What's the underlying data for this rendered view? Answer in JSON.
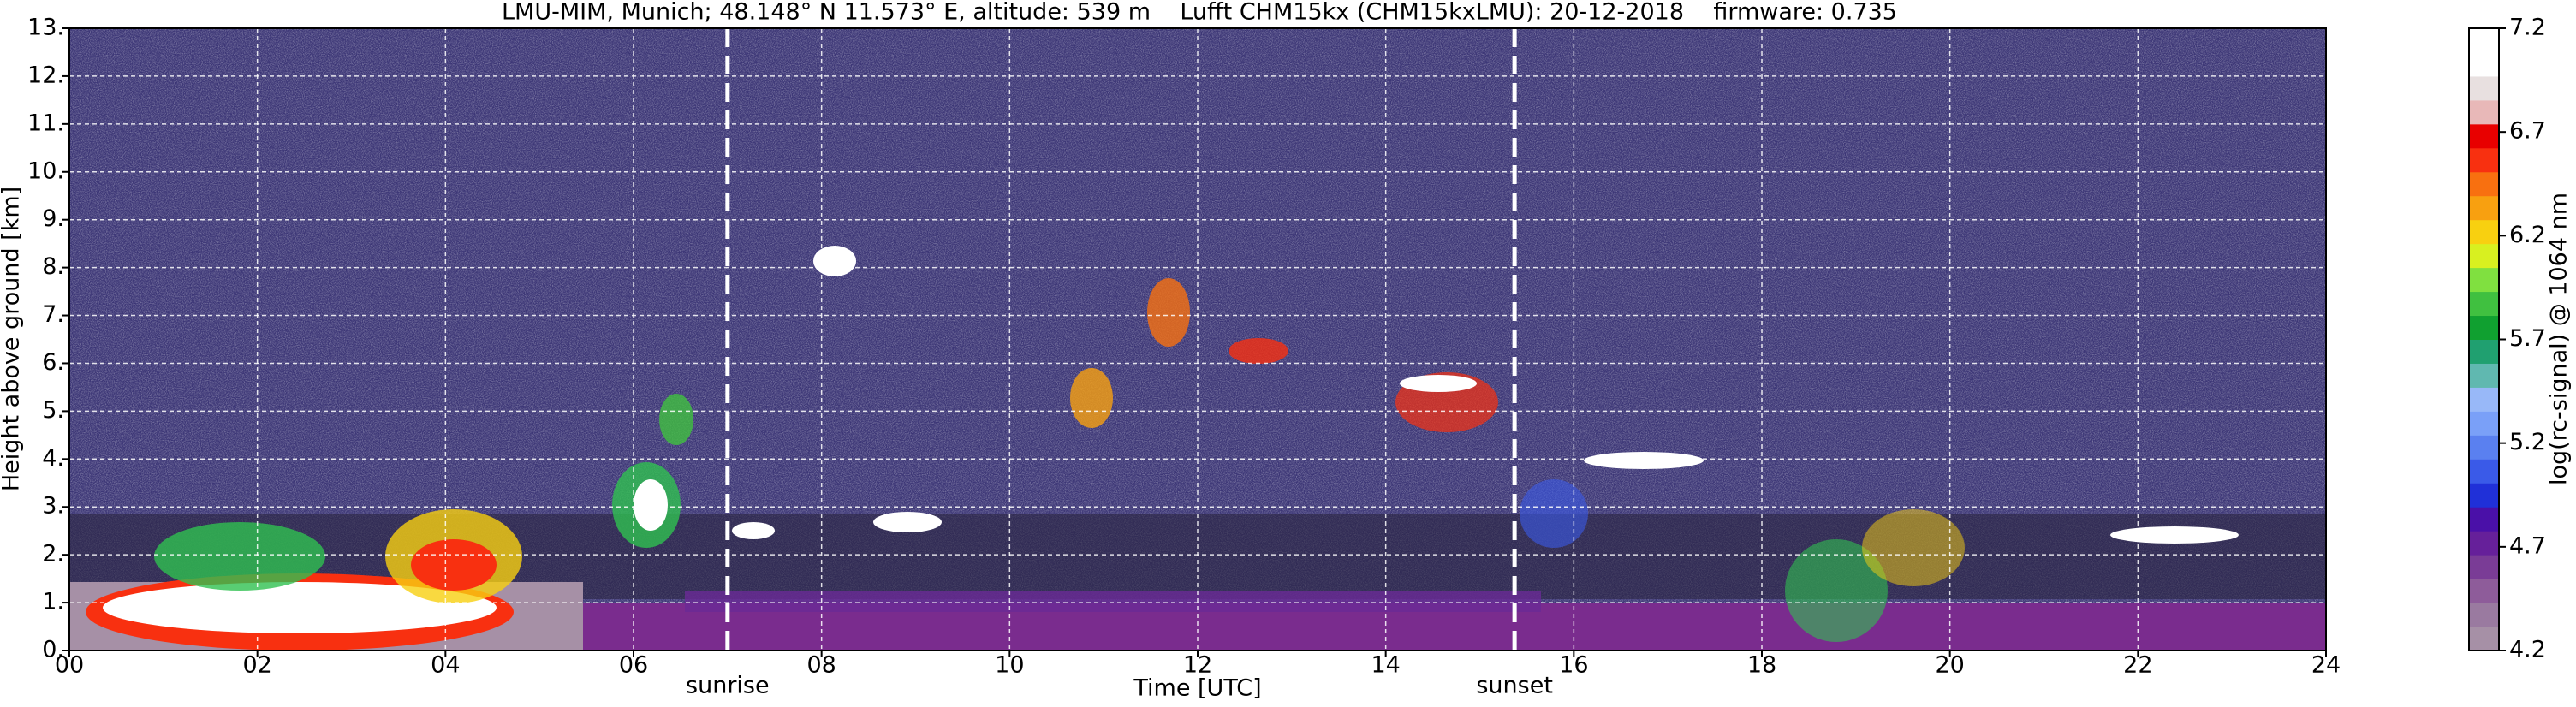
{
  "chart_data": {
    "type": "heatmap",
    "title": "LMU-MIM, Munich; 48.148° N 11.573° E, altitude: 539 m    Lufft CHM15kx (CHM15kxLMU): 20-12-2018    firmware: 0.735",
    "x_label": "Time [UTC]",
    "y_label": "Height above ground [km]",
    "colorbar_label": "log(rc-signal) @ 1064 nm",
    "xlim": [
      0,
      24
    ],
    "xticks": [
      {
        "value": 0,
        "label": "00"
      },
      {
        "value": 2,
        "label": "02"
      },
      {
        "value": 4,
        "label": "04"
      },
      {
        "value": 6,
        "label": "06"
      },
      {
        "value": 8,
        "label": "08"
      },
      {
        "value": 10,
        "label": "10"
      },
      {
        "value": 12,
        "label": "12"
      },
      {
        "value": 14,
        "label": "14"
      },
      {
        "value": 16,
        "label": "16"
      },
      {
        "value": 18,
        "label": "18"
      },
      {
        "value": 20,
        "label": "20"
      },
      {
        "value": 22,
        "label": "22"
      },
      {
        "value": 24,
        "label": "24"
      }
    ],
    "ylim": [
      0,
      13
    ],
    "yticks": [
      {
        "value": 0,
        "label": "0."
      },
      {
        "value": 1,
        "label": "1."
      },
      {
        "value": 2,
        "label": "2."
      },
      {
        "value": 3,
        "label": "3."
      },
      {
        "value": 4,
        "label": "4."
      },
      {
        "value": 5,
        "label": "5."
      },
      {
        "value": 6,
        "label": "6."
      },
      {
        "value": 7,
        "label": "7."
      },
      {
        "value": 8,
        "label": "8."
      },
      {
        "value": 9,
        "label": "9."
      },
      {
        "value": 10,
        "label": "10."
      },
      {
        "value": 11,
        "label": "11."
      },
      {
        "value": 12,
        "label": "12."
      },
      {
        "value": 13,
        "label": "13."
      }
    ],
    "clim": [
      4.2,
      7.2
    ],
    "cticks": [
      4.2,
      4.7,
      5.2,
      5.7,
      6.2,
      6.7,
      7.2
    ],
    "colorbar_colors": [
      "#a690a6",
      "#9a7aa0",
      "#8e5c9a",
      "#7a3c96",
      "#66209a",
      "#4a10a8",
      "#2030d8",
      "#3a5ae8",
      "#5a80f0",
      "#7aa0f8",
      "#98b8f8",
      "#60b8b0",
      "#20a070",
      "#10a030",
      "#40c040",
      "#80e040",
      "#d8f020",
      "#f8d010",
      "#f8a010",
      "#f87010",
      "#f83010",
      "#e80000",
      "#e8b8b8",
      "#e8e0e0",
      "#ffffff",
      "#ffffff"
    ],
    "grid": true,
    "annotations": [
      {
        "text": "sunrise",
        "x": 7.0
      },
      {
        "text": "sunset",
        "x": 15.37
      }
    ]
  }
}
